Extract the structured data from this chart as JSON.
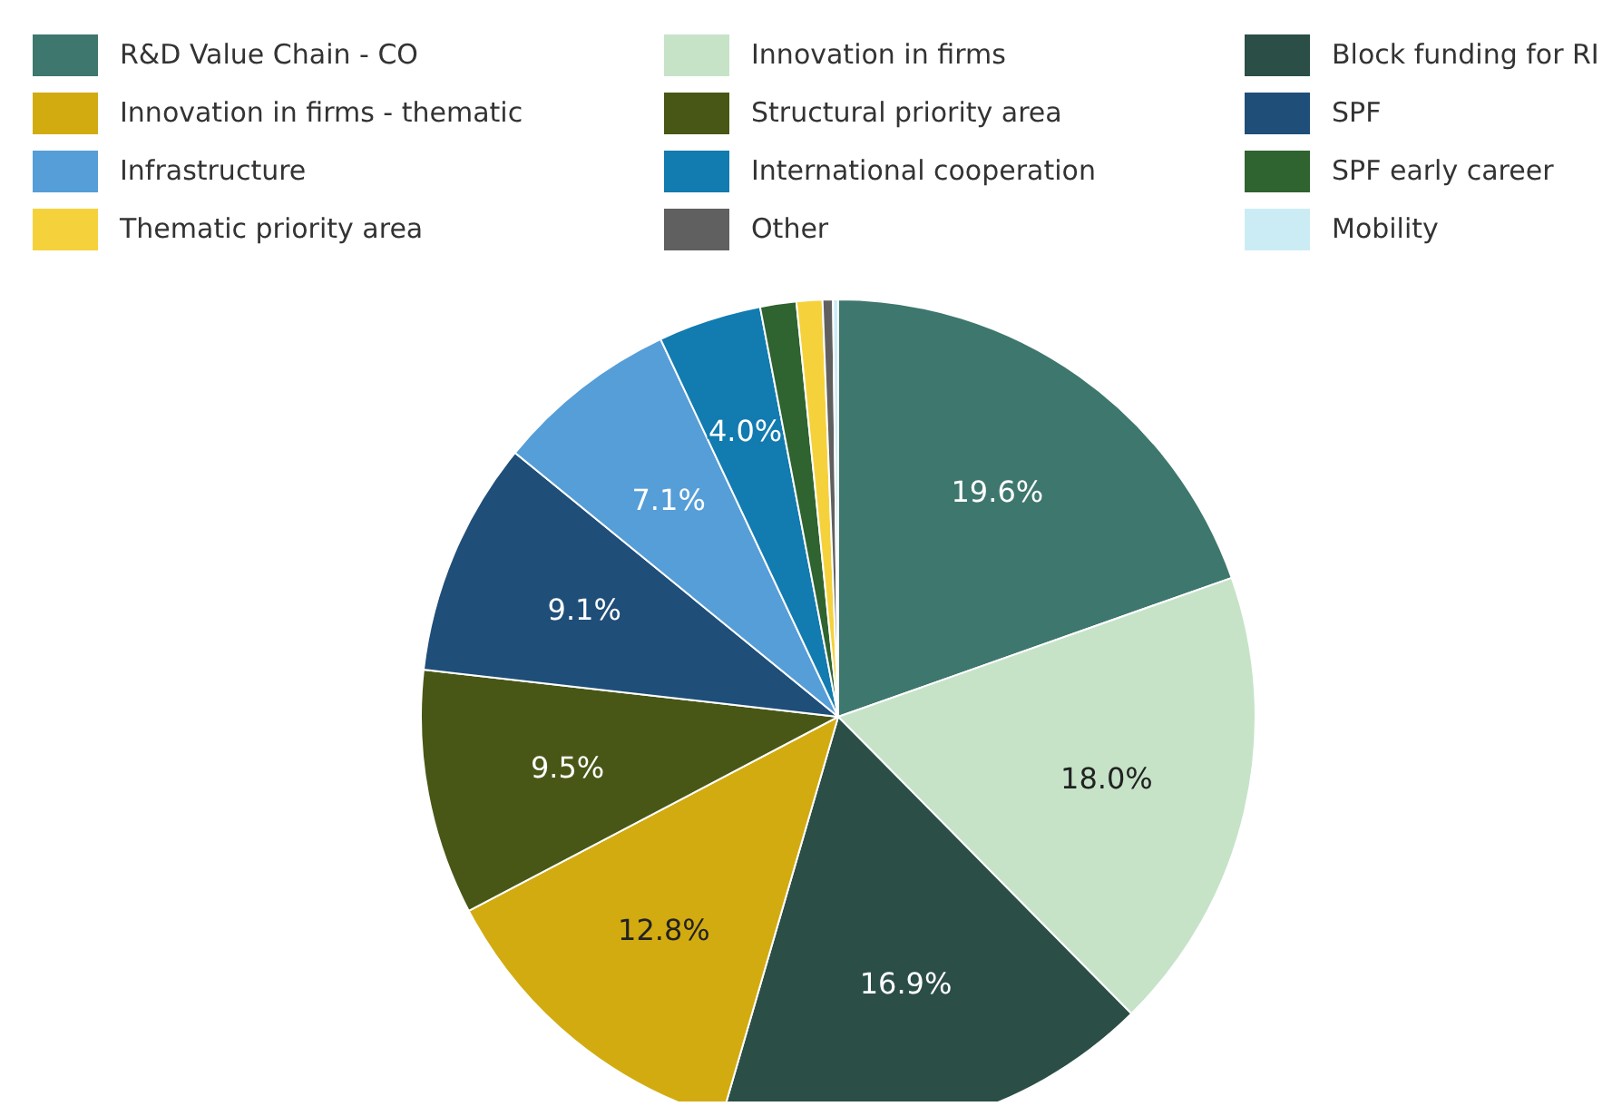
{
  "chart_data": {
    "type": "pie",
    "legend": "top",
    "categories": [
      "R&D Value Chain - CO",
      "Innovation in firms",
      "Block funding for RI",
      "Innovation in firms - thematic",
      "Structural priority area",
      "SPF",
      "Infrastructure",
      "International cooperation",
      "SPF early career",
      "Thematic priority area",
      "Other",
      "Mobility"
    ],
    "values": [
      19.6,
      18.0,
      16.9,
      12.8,
      9.5,
      9.1,
      7.1,
      4.0,
      1.4,
      1.0,
      0.4,
      0.2
    ],
    "colors": [
      "#3e776d",
      "#c6e3c8",
      "#2b4e47",
      "#d2ab11",
      "#485716",
      "#1f4e79",
      "#569ed8",
      "#127bb0",
      "#2f6330",
      "#f5d23c",
      "#606060",
      "#ccecf5"
    ],
    "value_labels": [
      "19.6%",
      "18.0%",
      "16.9%",
      "12.8%",
      "9.5%",
      "9.1%",
      "7.1%",
      "4.0%",
      null,
      null,
      null,
      null
    ]
  }
}
